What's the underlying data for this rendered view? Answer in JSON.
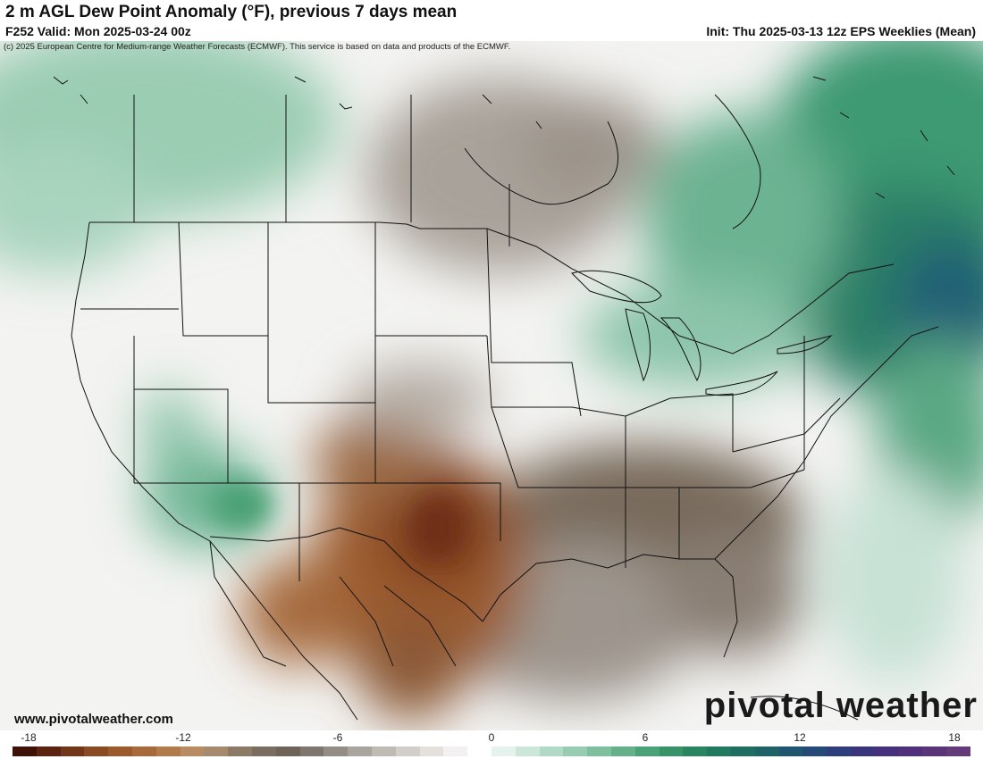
{
  "header": {
    "title": "2 m AGL Dew Point Anomaly (°F), previous 7 days mean",
    "valid": "F252 Valid: Mon 2025-03-24 00z",
    "init": "Init: Thu 2025-03-13 12z EPS Weeklies (Mean)"
  },
  "credit": "(c) 2025 European Centre for Medium-range Weather Forecasts (ECMWF). This service is based on data and products of the ECMWF.",
  "footer": {
    "url": "www.pivotalweather.com",
    "brand": "pivotal weather"
  },
  "legend": {
    "ticks": [
      "-18",
      "-12",
      "-6",
      "0",
      "6",
      "12",
      "18"
    ],
    "colors": [
      "#3f1208",
      "#5a2410",
      "#723718",
      "#8a4a22",
      "#9c5a2c",
      "#a86a3a",
      "#b27b4c",
      "#b88b62",
      "#a58a6e",
      "#8c7a66",
      "#7a6c5e",
      "#6e645a",
      "#7e766e",
      "#948d86",
      "#aaa49e",
      "#bfbab4",
      "#d2cec9",
      "#e4e1dd",
      "#f2f1ef",
      "#ffffff",
      "#e6f2ec",
      "#cce6da",
      "#b2d9c6",
      "#98ccb2",
      "#7ebf9e",
      "#64b08a",
      "#4ca278",
      "#389468",
      "#2a8660",
      "#217a5e",
      "#1f6e62",
      "#1f6268",
      "#205670",
      "#264a78",
      "#2e3e7c",
      "#3a347e",
      "#46307e",
      "#50307c",
      "#5a3478",
      "#643a78"
    ]
  }
}
